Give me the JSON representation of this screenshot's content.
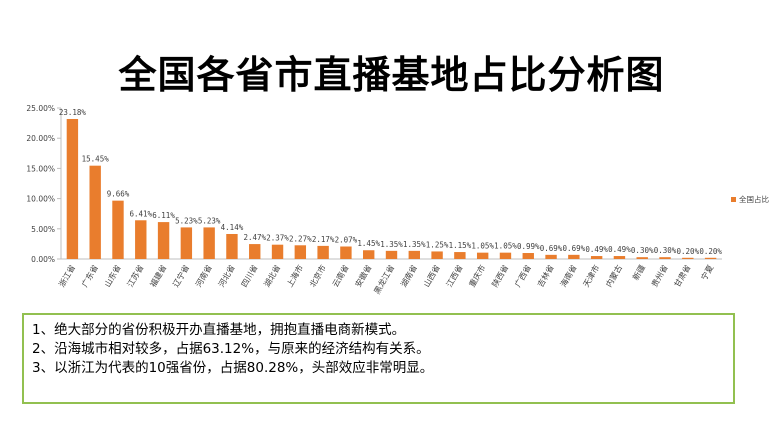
{
  "title": "全国各省市直播基地占比分析图",
  "notes": [
    "1、绝大部分的省份积极开办直播基地，拥抱直播电商新模式。",
    "2、沿海城市相对较多，占据63.12%，与原来的经济结构有关系。",
    "3、以浙江为代表的10强省份，占据80.28%，头部效应非常明显。"
  ],
  "chart_data": {
    "type": "bar",
    "title": "全国各省市直播基地占比分析图",
    "categories": [
      "浙江省",
      "广东省",
      "山东省",
      "江苏省",
      "福建省",
      "辽宁省",
      "河南省",
      "河北省",
      "四川省",
      "湖北省",
      "上海市",
      "北京市",
      "云南省",
      "安徽省",
      "黑龙江省",
      "湖南省",
      "山西省",
      "江西省",
      "重庆市",
      "陕西省",
      "广西省",
      "吉林省",
      "海南省",
      "天津市",
      "内蒙古",
      "新疆",
      "贵州省",
      "甘肃省",
      "宁夏"
    ],
    "series": [
      {
        "name": "全国占比",
        "values": [
          23.18,
          15.45,
          9.66,
          6.41,
          6.11,
          5.23,
          5.23,
          4.14,
          2.47,
          2.37,
          2.27,
          2.17,
          2.07,
          1.45,
          1.35,
          1.35,
          1.25,
          1.15,
          1.05,
          1.05,
          0.99,
          0.69,
          0.69,
          0.49,
          0.49,
          0.3,
          0.3,
          0.2,
          0.2
        ],
        "labels": [
          "23.18%",
          "15.45%",
          "9.66%",
          "6.41%",
          "6.11%",
          "5.23%",
          "5.23%",
          "4.14%",
          "2.47%",
          "2.37%",
          "2.27%",
          "2.17%",
          "2.07%",
          "1.45%",
          "1.35%",
          "1.35%",
          "1.25%",
          "1.15%",
          "1.05%",
          "1.05%",
          "0.99%",
          "0.69%",
          "0.69%",
          "0.49%",
          "0.49%",
          "0.30%",
          "0.30%",
          "0.20%",
          "0.20%"
        ]
      }
    ],
    "y_ticks": [
      "0.00%",
      "5.00%",
      "10.00%",
      "15.00%",
      "20.00%",
      "25.00%"
    ],
    "ylim": [
      0,
      25
    ],
    "grid": false,
    "legend": "right",
    "colors": {
      "bar": "#e97d2d",
      "axis": "#bfbfbf",
      "text": "#404040"
    }
  }
}
